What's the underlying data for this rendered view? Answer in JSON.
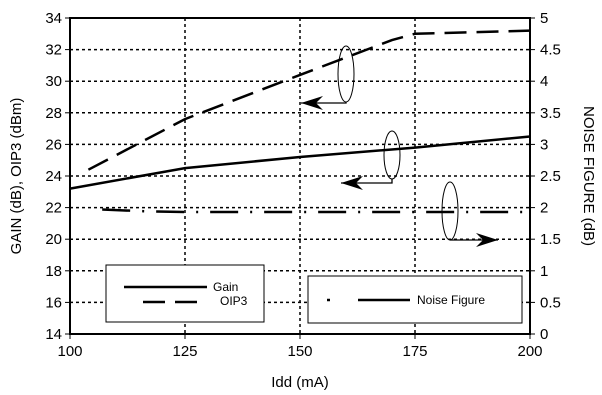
{
  "chart_data": {
    "type": "line",
    "title": "",
    "xlabel": "Idd (mA)",
    "ylabel_left": "GAIN (dB), OIP3 (dBm)",
    "ylabel_right": "NOISE FIGURE (dB)",
    "x_ticks": [
      "100",
      "125",
      "150",
      "175",
      "200"
    ],
    "y_left_ticks": [
      "14",
      "16",
      "18",
      "20",
      "22",
      "24",
      "26",
      "28",
      "30",
      "32",
      "34"
    ],
    "y_right_ticks": [
      "0",
      "0.5",
      "1",
      "1.5",
      "2",
      "2.5",
      "3",
      "3.5",
      "4",
      "4.5",
      "5"
    ],
    "xlim": [
      100,
      200
    ],
    "ylim_left": [
      14,
      34
    ],
    "ylim_right": [
      0,
      5
    ],
    "grid": true,
    "series": [
      {
        "name": "Gain",
        "axis": "left",
        "style": "solid",
        "x": [
          100,
          125,
          150,
          175,
          200
        ],
        "y": [
          23.2,
          24.5,
          25.2,
          25.8,
          26.5
        ]
      },
      {
        "name": "OIP3",
        "axis": "left",
        "style": "dashed",
        "x": [
          104,
          125,
          150,
          160,
          170,
          175,
          200
        ],
        "y": [
          24.4,
          27.6,
          30.4,
          31.5,
          32.6,
          33.0,
          33.2
        ]
      },
      {
        "name": "Noise Figure",
        "axis": "right",
        "style": "dash-dot",
        "x": [
          107,
          117,
          125,
          150,
          175,
          200
        ],
        "y": [
          1.97,
          1.94,
          1.93,
          1.93,
          1.93,
          1.93
        ]
      }
    ],
    "legends": [
      {
        "entries": [
          "Gain",
          "OIP3"
        ],
        "placement": "bottom-left"
      },
      {
        "entries": [
          "Noise Figure"
        ],
        "placement": "bottom-right"
      }
    ],
    "annotations": [
      {
        "target_series": "OIP3",
        "points_to": "left axis"
      },
      {
        "target_series": "Gain",
        "points_to": "left axis"
      },
      {
        "target_series": "Noise Figure",
        "points_to": "right axis"
      }
    ]
  }
}
